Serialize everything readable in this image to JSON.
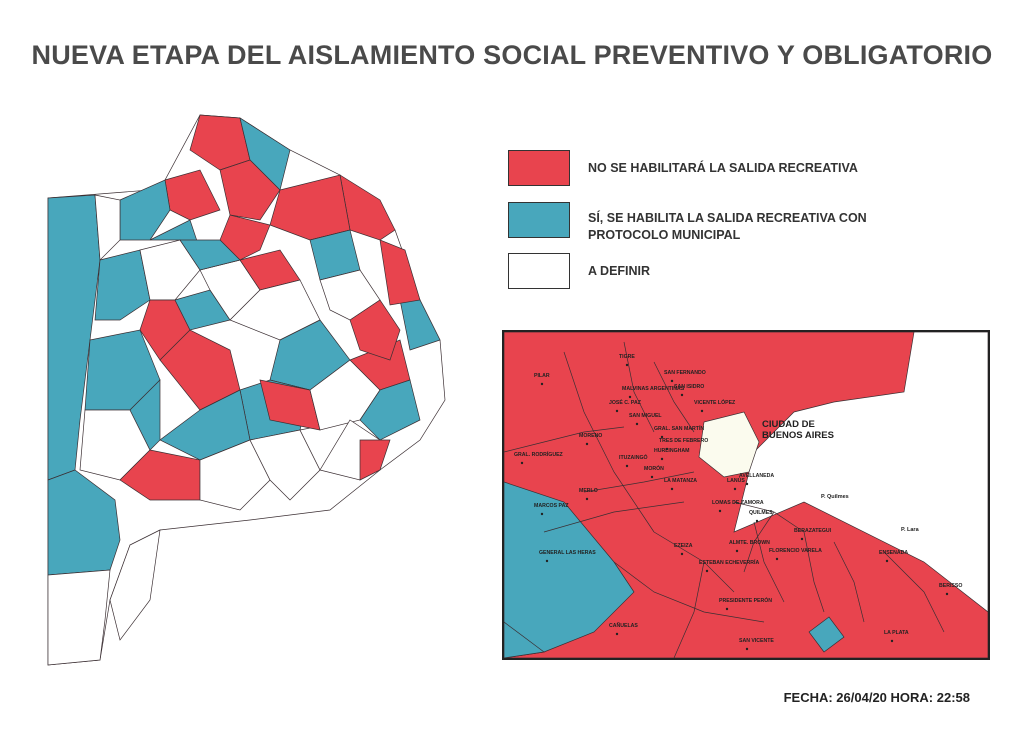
{
  "title": "NUEVA ETAPA DEL AISLAMIENTO SOCIAL PREVENTIVO Y OBLIGATORIO",
  "colors": {
    "red": "#e8444e",
    "teal": "#48a7bc",
    "white": "#ffffff",
    "border": "#3b2f33",
    "caba": "#fbfbee"
  },
  "legend": [
    {
      "status": "red",
      "label": "NO SE HABILITARÁ LA SALIDA RECREATIVA"
    },
    {
      "status": "teal",
      "label": "SÍ, SE HABILITA LA SALIDA RECREATIVA CON PROTOCOLO MUNICIPAL"
    },
    {
      "status": "white",
      "label": "A DEFINIR"
    }
  ],
  "inset": {
    "city_label": "CIUDAD DE BUENOS AIRES",
    "places": [
      "P. Quilmes",
      "P. Lara"
    ],
    "municipalities": [
      {
        "name": "TIGRE",
        "status": "red"
      },
      {
        "name": "SAN FERNANDO",
        "status": "red"
      },
      {
        "name": "SAN ISIDRO",
        "status": "red"
      },
      {
        "name": "VICENTE LÓPEZ",
        "status": "red"
      },
      {
        "name": "PILAR",
        "status": "red"
      },
      {
        "name": "MALVINAS ARGENTINAS",
        "status": "red"
      },
      {
        "name": "JOSÉ C. PAZ",
        "status": "red"
      },
      {
        "name": "SAN MIGUEL",
        "status": "red"
      },
      {
        "name": "GRAL. SAN MARTÍN",
        "status": "red"
      },
      {
        "name": "TRES DE FEBRERO",
        "status": "red"
      },
      {
        "name": "HURLINGHAM",
        "status": "red"
      },
      {
        "name": "MORENO",
        "status": "red"
      },
      {
        "name": "ITUZAINGÓ",
        "status": "red"
      },
      {
        "name": "MORÓN",
        "status": "red"
      },
      {
        "name": "GRAL. RODRÍGUEZ",
        "status": "red"
      },
      {
        "name": "MERLO",
        "status": "red"
      },
      {
        "name": "LA MATANZA",
        "status": "red"
      },
      {
        "name": "LANÚS",
        "status": "red"
      },
      {
        "name": "AVELLANEDA",
        "status": "red"
      },
      {
        "name": "LOMAS DE ZAMORA",
        "status": "red"
      },
      {
        "name": "QUILMES",
        "status": "red"
      },
      {
        "name": "BERAZATEGUI",
        "status": "red"
      },
      {
        "name": "MARCOS PAZ",
        "status": "teal"
      },
      {
        "name": "EZEIZA",
        "status": "red"
      },
      {
        "name": "ALMTE. BROWN",
        "status": "red"
      },
      {
        "name": "ESTEBAN ECHEVERRÍA",
        "status": "red"
      },
      {
        "name": "FLORENCIO VARELA",
        "status": "red"
      },
      {
        "name": "ENSENADA",
        "status": "red"
      },
      {
        "name": "GENERAL LAS HERAS",
        "status": "teal"
      },
      {
        "name": "BERISSO",
        "status": "red"
      },
      {
        "name": "PRESIDENTE PERÓN",
        "status": "red"
      },
      {
        "name": "CAÑUELAS",
        "status": "red"
      },
      {
        "name": "LA PLATA",
        "status": "red"
      },
      {
        "name": "SAN VICENTE",
        "status": "red"
      }
    ]
  },
  "footer": "FECHA: 26/04/20 HORA: 22:58"
}
